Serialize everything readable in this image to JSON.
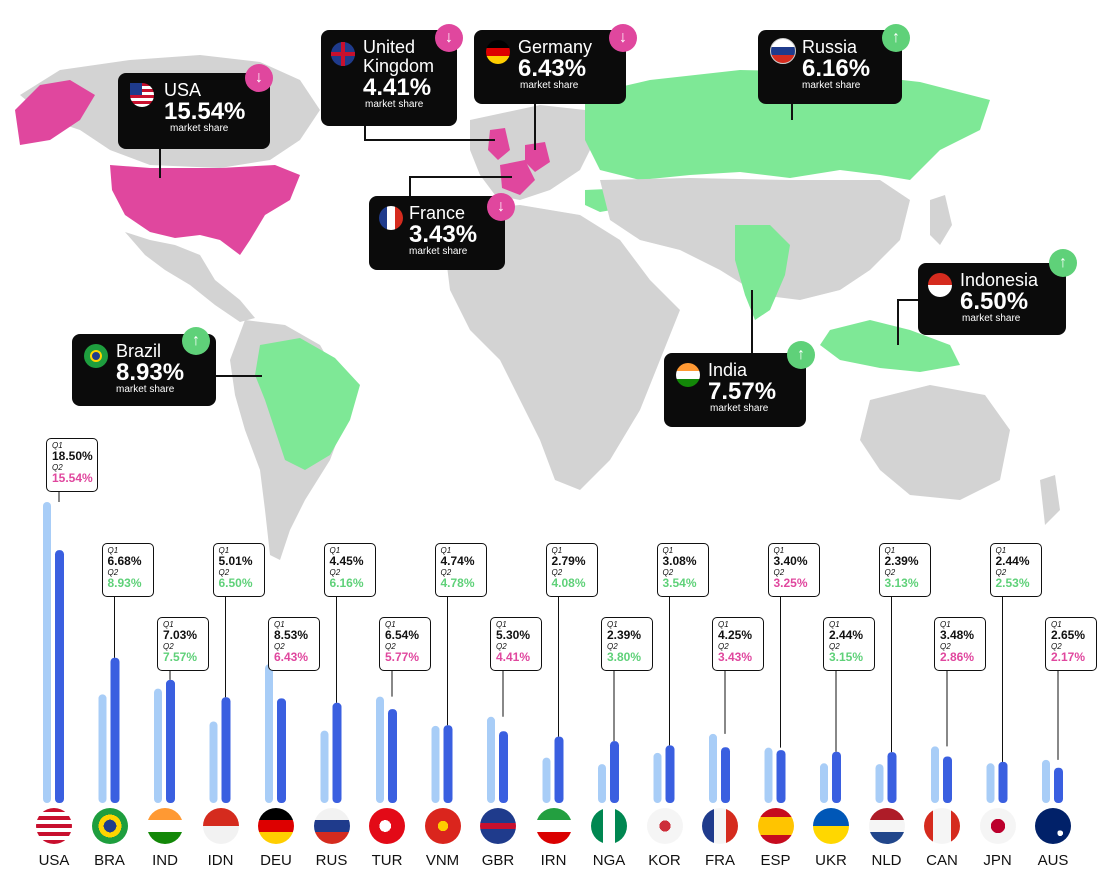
{
  "colors": {
    "land": "#d3d3d3",
    "highlight_green": "#7ee896",
    "highlight_pink": "#e0479e",
    "q1_bar": "#a8cdf7",
    "q2_bar": "#3a5fe0",
    "increase": "#5fd179",
    "decrease": "#e0479e",
    "callout_bg": "#0b0b0b"
  },
  "callouts": [
    {
      "country": "USA",
      "value": "15.54%",
      "sub": "market share",
      "trend": "down",
      "flag_icon": "usa-flag-icon"
    },
    {
      "country": "United\nKingdom",
      "value": "4.41%",
      "sub": "market share",
      "trend": "down",
      "flag_icon": "uk-flag-icon"
    },
    {
      "country": "Germany",
      "value": "6.43%",
      "sub": "market share",
      "trend": "down",
      "flag_icon": "germany-flag-icon"
    },
    {
      "country": "Russia",
      "value": "6.16%",
      "sub": "market share",
      "trend": "up",
      "flag_icon": "russia-flag-icon"
    },
    {
      "country": "France",
      "value": "3.43%",
      "sub": "market share",
      "trend": "down",
      "flag_icon": "france-flag-icon"
    },
    {
      "country": "Indonesia",
      "value": "6.50%",
      "sub": "market share",
      "trend": "up",
      "flag_icon": "indonesia-flag-icon"
    },
    {
      "country": "Brazil",
      "value": "8.93%",
      "sub": "market share",
      "trend": "up",
      "flag_icon": "brazil-flag-icon"
    },
    {
      "country": "India",
      "value": "7.57%",
      "sub": "market share",
      "trend": "up",
      "flag_icon": "india-flag-icon"
    }
  ],
  "trend_icons": {
    "up": "↑",
    "down": "↓"
  },
  "chart_data": {
    "type": "bar",
    "categories": [
      "USA",
      "BRA",
      "IND",
      "IDN",
      "DEU",
      "RUS",
      "TUR",
      "VNM",
      "GBR",
      "IRN",
      "NGA",
      "KOR",
      "FRA",
      "ESP",
      "UKR",
      "NLD",
      "CAN",
      "JPN",
      "AUS"
    ],
    "series": [
      {
        "name": "Q1",
        "values": [
          18.5,
          6.68,
          7.03,
          5.01,
          8.53,
          4.45,
          6.54,
          4.74,
          5.3,
          2.79,
          2.39,
          3.08,
          4.25,
          3.4,
          2.44,
          2.39,
          3.48,
          2.44,
          2.65
        ]
      },
      {
        "name": "Q2",
        "values": [
          15.54,
          8.93,
          7.57,
          6.5,
          6.43,
          6.16,
          5.77,
          4.78,
          4.41,
          4.08,
          3.8,
          3.54,
          3.43,
          3.25,
          3.15,
          3.13,
          2.86,
          2.53,
          2.17
        ]
      }
    ],
    "q1_labels": [
      "18.50%",
      "6.68%",
      "7.03%",
      "5.01%",
      "8.53%",
      "4.45%",
      "6.54%",
      "4.74%",
      "5.30%",
      "2.79%",
      "2.39%",
      "3.08%",
      "4.25%",
      "3.40%",
      "2.44%",
      "2.39%",
      "3.48%",
      "2.44%",
      "2.65%"
    ],
    "q2_labels": [
      "15.54%",
      "8.93%",
      "7.57%",
      "6.50%",
      "6.43%",
      "6.16%",
      "5.77%",
      "4.78%",
      "4.41%",
      "4.08%",
      "3.80%",
      "3.54%",
      "3.43%",
      "3.25%",
      "3.15%",
      "3.13%",
      "2.86%",
      "2.53%",
      "2.17%"
    ],
    "q1_tag": "Q1",
    "q2_tag": "Q2",
    "ylim": [
      0,
      18.5
    ],
    "legend": "none",
    "grid": false
  }
}
